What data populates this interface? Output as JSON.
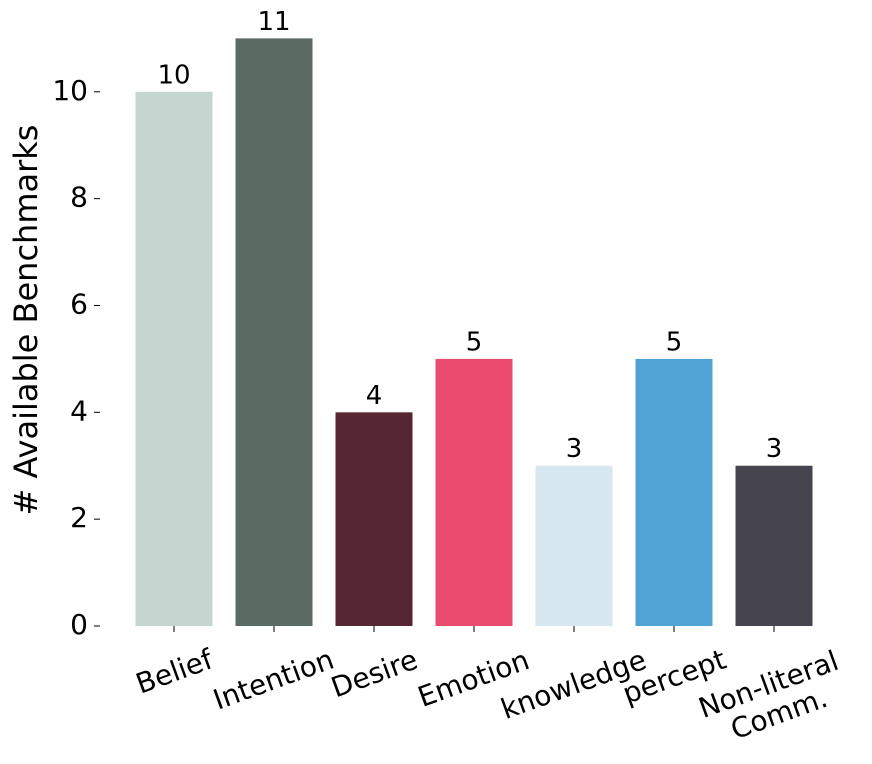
{
  "chart_data": {
    "type": "bar",
    "y_label": "# Available Benchmarks",
    "categories": [
      "Belief",
      "Intention",
      "Desire",
      "Emotion",
      "knowledge",
      "percept",
      "Non-literal\nComm."
    ],
    "values": [
      10,
      11,
      4,
      5,
      3,
      5,
      3
    ],
    "colors": [
      "#c5d5cf",
      "#5b6a62",
      "#562733",
      "#e94c6f",
      "#d7e7ef",
      "#50a3d4",
      "#45444f"
    ],
    "ylim": [
      0,
      11.55
    ],
    "yticks": [
      0,
      2,
      4,
      6,
      8,
      10
    ],
    "grid": false
  }
}
